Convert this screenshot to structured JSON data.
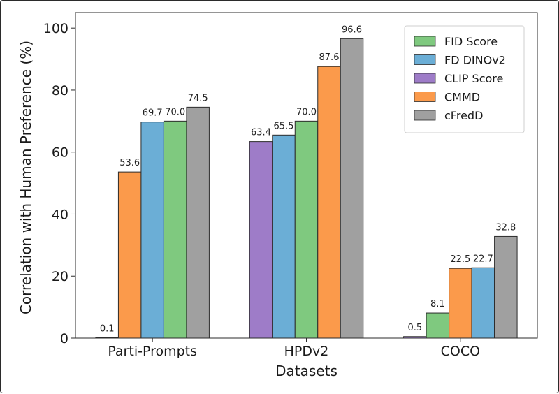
{
  "chart_data": {
    "type": "bar",
    "xlabel": "Datasets",
    "ylabel": "Correlation with Human Preference (%)",
    "ylim": [
      0,
      105
    ],
    "yticks": [
      0,
      20,
      40,
      60,
      80,
      100
    ],
    "grid": false,
    "legend_position": "top-right",
    "legend": [
      {
        "name": "FID Score",
        "color": "#7fc97f"
      },
      {
        "name": "FD DINOv2",
        "color": "#6baed6"
      },
      {
        "name": "CLIP Score",
        "color": "#9e7cc8"
      },
      {
        "name": "CMMD",
        "color": "#fb9a4b"
      },
      {
        "name": "cFredD",
        "color": "#a0a0a0"
      }
    ],
    "groups": [
      {
        "category": "Parti-Prompts",
        "bars": [
          {
            "series": "CLIP Score",
            "value": 0.1,
            "label": "0.1"
          },
          {
            "series": "CMMD",
            "value": 53.6,
            "label": "53.6"
          },
          {
            "series": "FD DINOv2",
            "value": 69.7,
            "label": "69.7"
          },
          {
            "series": "FID Score",
            "value": 70.0,
            "label": "70.0"
          },
          {
            "series": "cFredD",
            "value": 74.5,
            "label": "74.5"
          }
        ]
      },
      {
        "category": "HPDv2",
        "bars": [
          {
            "series": "CLIP Score",
            "value": 63.4,
            "label": "63.4"
          },
          {
            "series": "FD DINOv2",
            "value": 65.5,
            "label": "65.5"
          },
          {
            "series": "FID Score",
            "value": 70.0,
            "label": "70.0"
          },
          {
            "series": "CMMD",
            "value": 87.6,
            "label": "87.6"
          },
          {
            "series": "cFredD",
            "value": 96.6,
            "label": "96.6"
          }
        ]
      },
      {
        "category": "COCO",
        "bars": [
          {
            "series": "CLIP Score",
            "value": 0.5,
            "label": "0.5"
          },
          {
            "series": "FID Score",
            "value": 8.1,
            "label": "8.1"
          },
          {
            "series": "CMMD",
            "value": 22.5,
            "label": "22.5"
          },
          {
            "series": "FD DINOv2",
            "value": 22.7,
            "label": "22.7"
          },
          {
            "series": "cFredD",
            "value": 32.8,
            "label": "32.8"
          }
        ]
      }
    ]
  }
}
